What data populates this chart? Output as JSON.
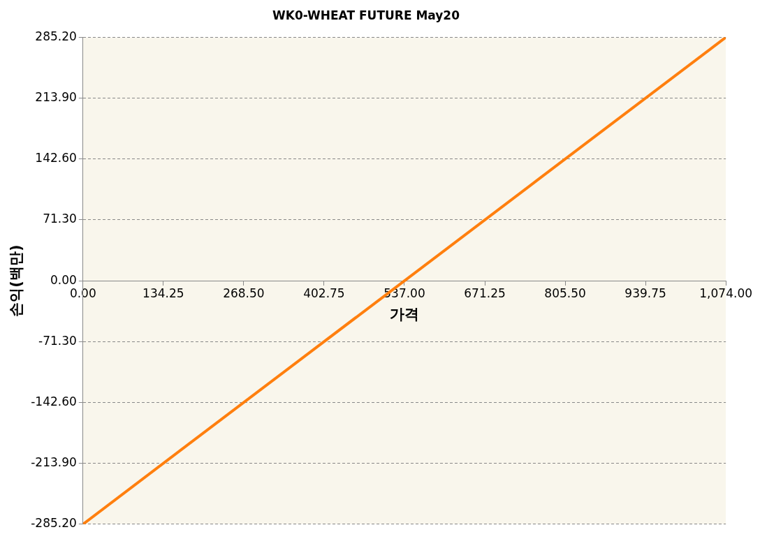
{
  "chart_data": {
    "type": "line",
    "title": "WK0-WHEAT FUTURE May20",
    "xlabel": "가격",
    "ylabel": "손익(백만)",
    "x": [
      0,
      1074
    ],
    "series": [
      {
        "color": "#ff7f0e",
        "values": [
          -285.2,
          285.2
        ]
      }
    ],
    "xlim": [
      0,
      1074
    ],
    "xticks": [
      {
        "value": 0,
        "label": "0.00"
      },
      {
        "value": 134.25,
        "label": "134.25"
      },
      {
        "value": 268.5,
        "label": "268.50"
      },
      {
        "value": 402.75,
        "label": "402.75"
      },
      {
        "value": 537,
        "label": "537.00"
      },
      {
        "value": 671.25,
        "label": "671.25"
      },
      {
        "value": 805.5,
        "label": "805.50"
      },
      {
        "value": 939.75,
        "label": "939.75"
      },
      {
        "value": 1074,
        "label": "1,074.00"
      }
    ],
    "ylim": [
      -285.2,
      285.2
    ],
    "yticks": [
      {
        "value": -285.2,
        "label": "-285.20"
      },
      {
        "value": -213.9,
        "label": "-213.90"
      },
      {
        "value": -142.6,
        "label": "-142.60"
      },
      {
        "value": -71.3,
        "label": "-71.30"
      },
      {
        "value": 0,
        "label": "0.00"
      },
      {
        "value": 71.3,
        "label": "71.30"
      },
      {
        "value": 142.6,
        "label": "142.60"
      },
      {
        "value": 213.9,
        "label": "213.90"
      },
      {
        "value": 285.2,
        "label": "285.20"
      }
    ],
    "grid": "y",
    "marker": "none",
    "line_style": "solid"
  }
}
